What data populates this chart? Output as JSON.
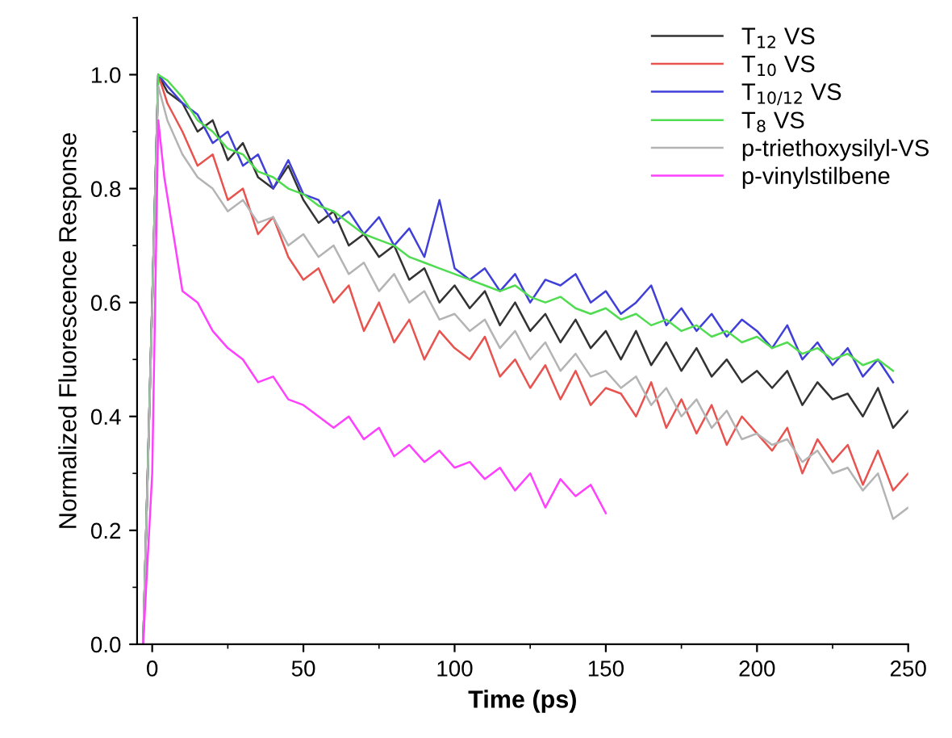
{
  "chart_data": {
    "type": "line",
    "xlabel": "Time (ps)",
    "ylabel": "Normalized Fluorescence Response",
    "xlim": [
      -5,
      250
    ],
    "ylim": [
      0,
      1.1
    ],
    "xticks": [
      0,
      50,
      100,
      150,
      200,
      250
    ],
    "yticks": [
      {
        "value": 0,
        "label": "0.0"
      },
      {
        "value": 0.2,
        "label": "0.2"
      },
      {
        "value": 0.4,
        "label": "0.4"
      },
      {
        "value": 0.6,
        "label": "0.6"
      },
      {
        "value": 0.8,
        "label": "0.8"
      },
      {
        "value": 1.0,
        "label": "1.0"
      }
    ],
    "legend": "top right",
    "grid": false,
    "marker": "none",
    "line_style": "solid",
    "series": [
      {
        "name": "T$_{12}$ VS",
        "color": "#333333",
        "x": [
          -3,
          2,
          5,
          10,
          15,
          20,
          25,
          30,
          35,
          40,
          45,
          50,
          55,
          60,
          65,
          70,
          75,
          80,
          85,
          90,
          95,
          100,
          105,
          110,
          115,
          120,
          125,
          130,
          135,
          140,
          145,
          150,
          155,
          160,
          165,
          170,
          175,
          180,
          185,
          190,
          195,
          200,
          205,
          210,
          215,
          220,
          225,
          230,
          235,
          240,
          245,
          250
        ],
        "values": [
          0,
          1.0,
          0.97,
          0.95,
          0.9,
          0.92,
          0.85,
          0.88,
          0.82,
          0.8,
          0.84,
          0.78,
          0.74,
          0.76,
          0.7,
          0.72,
          0.68,
          0.7,
          0.64,
          0.66,
          0.6,
          0.63,
          0.59,
          0.62,
          0.56,
          0.6,
          0.55,
          0.58,
          0.53,
          0.57,
          0.52,
          0.55,
          0.5,
          0.55,
          0.49,
          0.53,
          0.48,
          0.52,
          0.47,
          0.5,
          0.46,
          0.48,
          0.45,
          0.48,
          0.42,
          0.46,
          0.43,
          0.44,
          0.4,
          0.45,
          0.38,
          0.41
        ]
      },
      {
        "name": "T$_{10}$ VS",
        "color": "#e8534f",
        "x": [
          -3,
          2,
          5,
          10,
          15,
          20,
          25,
          30,
          35,
          40,
          45,
          50,
          55,
          60,
          65,
          70,
          75,
          80,
          85,
          90,
          95,
          100,
          105,
          110,
          115,
          120,
          125,
          130,
          135,
          140,
          145,
          150,
          155,
          160,
          165,
          170,
          175,
          180,
          185,
          190,
          195,
          200,
          205,
          210,
          215,
          220,
          225,
          230,
          235,
          240,
          245,
          250
        ],
        "values": [
          0,
          1.0,
          0.95,
          0.9,
          0.84,
          0.86,
          0.78,
          0.8,
          0.72,
          0.75,
          0.68,
          0.64,
          0.66,
          0.6,
          0.63,
          0.55,
          0.6,
          0.53,
          0.57,
          0.5,
          0.55,
          0.52,
          0.5,
          0.54,
          0.47,
          0.5,
          0.45,
          0.49,
          0.43,
          0.48,
          0.42,
          0.45,
          0.44,
          0.4,
          0.46,
          0.38,
          0.43,
          0.37,
          0.42,
          0.35,
          0.4,
          0.37,
          0.34,
          0.38,
          0.3,
          0.36,
          0.32,
          0.35,
          0.28,
          0.34,
          0.27,
          0.3
        ]
      },
      {
        "name": "T$_{10/12}$ VS",
        "color": "#4040d8",
        "x": [
          -3,
          2,
          5,
          10,
          15,
          20,
          25,
          30,
          35,
          40,
          45,
          50,
          55,
          60,
          65,
          70,
          75,
          80,
          85,
          90,
          95,
          100,
          105,
          110,
          115,
          120,
          125,
          130,
          135,
          140,
          145,
          150,
          155,
          160,
          165,
          170,
          175,
          180,
          185,
          190,
          195,
          200,
          205,
          210,
          215,
          220,
          225,
          230,
          235,
          240,
          245
        ],
        "values": [
          0,
          1.0,
          0.98,
          0.95,
          0.93,
          0.88,
          0.9,
          0.84,
          0.86,
          0.8,
          0.85,
          0.79,
          0.78,
          0.74,
          0.76,
          0.72,
          0.75,
          0.7,
          0.73,
          0.68,
          0.78,
          0.66,
          0.64,
          0.66,
          0.62,
          0.65,
          0.6,
          0.64,
          0.63,
          0.65,
          0.6,
          0.62,
          0.58,
          0.6,
          0.63,
          0.56,
          0.59,
          0.55,
          0.58,
          0.54,
          0.57,
          0.55,
          0.52,
          0.56,
          0.5,
          0.53,
          0.49,
          0.52,
          0.47,
          0.5,
          0.46
        ]
      },
      {
        "name": "T$_{8}$ VS",
        "color": "#50dc50",
        "x": [
          -3,
          2,
          5,
          10,
          15,
          20,
          25,
          30,
          35,
          40,
          45,
          50,
          55,
          60,
          65,
          70,
          75,
          80,
          85,
          90,
          95,
          100,
          105,
          110,
          115,
          120,
          125,
          130,
          135,
          140,
          145,
          150,
          155,
          160,
          165,
          170,
          175,
          180,
          185,
          190,
          195,
          200,
          205,
          210,
          215,
          220,
          225,
          230,
          235,
          240,
          245
        ],
        "values": [
          0,
          1.0,
          0.99,
          0.96,
          0.92,
          0.9,
          0.87,
          0.86,
          0.83,
          0.82,
          0.8,
          0.79,
          0.77,
          0.76,
          0.74,
          0.72,
          0.71,
          0.7,
          0.68,
          0.67,
          0.66,
          0.65,
          0.64,
          0.63,
          0.62,
          0.63,
          0.61,
          0.6,
          0.61,
          0.59,
          0.58,
          0.59,
          0.57,
          0.58,
          0.56,
          0.57,
          0.55,
          0.56,
          0.54,
          0.55,
          0.53,
          0.54,
          0.52,
          0.53,
          0.51,
          0.52,
          0.5,
          0.51,
          0.49,
          0.5,
          0.48
        ]
      },
      {
        "name": "p-triethoxysilyl-VS",
        "color": "#b4b4b4",
        "x": [
          -3,
          2,
          5,
          10,
          15,
          20,
          25,
          30,
          35,
          40,
          45,
          50,
          55,
          60,
          65,
          70,
          75,
          80,
          85,
          90,
          95,
          100,
          105,
          110,
          115,
          120,
          125,
          130,
          135,
          140,
          145,
          150,
          155,
          160,
          165,
          170,
          175,
          180,
          185,
          190,
          195,
          200,
          205,
          210,
          215,
          220,
          225,
          230,
          235,
          240,
          245,
          250
        ],
        "values": [
          0,
          0.98,
          0.92,
          0.86,
          0.82,
          0.8,
          0.76,
          0.78,
          0.74,
          0.75,
          0.7,
          0.72,
          0.68,
          0.7,
          0.65,
          0.67,
          0.62,
          0.65,
          0.6,
          0.62,
          0.57,
          0.58,
          0.55,
          0.57,
          0.52,
          0.55,
          0.5,
          0.53,
          0.48,
          0.51,
          0.47,
          0.48,
          0.45,
          0.47,
          0.42,
          0.45,
          0.4,
          0.43,
          0.38,
          0.41,
          0.36,
          0.37,
          0.35,
          0.36,
          0.32,
          0.34,
          0.3,
          0.31,
          0.27,
          0.3,
          0.22,
          0.24
        ]
      },
      {
        "name": "p-vinylstilbene",
        "color": "#ff40ff",
        "x": [
          -3,
          0,
          2,
          4,
          7,
          10,
          15,
          20,
          25,
          30,
          35,
          40,
          45,
          50,
          55,
          60,
          65,
          70,
          75,
          80,
          85,
          90,
          95,
          100,
          105,
          110,
          115,
          120,
          125,
          130,
          135,
          140,
          145,
          150
        ],
        "values": [
          0,
          0.3,
          0.92,
          0.82,
          0.72,
          0.62,
          0.6,
          0.55,
          0.52,
          0.5,
          0.46,
          0.47,
          0.43,
          0.42,
          0.4,
          0.38,
          0.4,
          0.36,
          0.38,
          0.33,
          0.35,
          0.32,
          0.34,
          0.31,
          0.32,
          0.29,
          0.31,
          0.27,
          0.3,
          0.24,
          0.29,
          0.26,
          0.28,
          0.23
        ]
      }
    ]
  }
}
